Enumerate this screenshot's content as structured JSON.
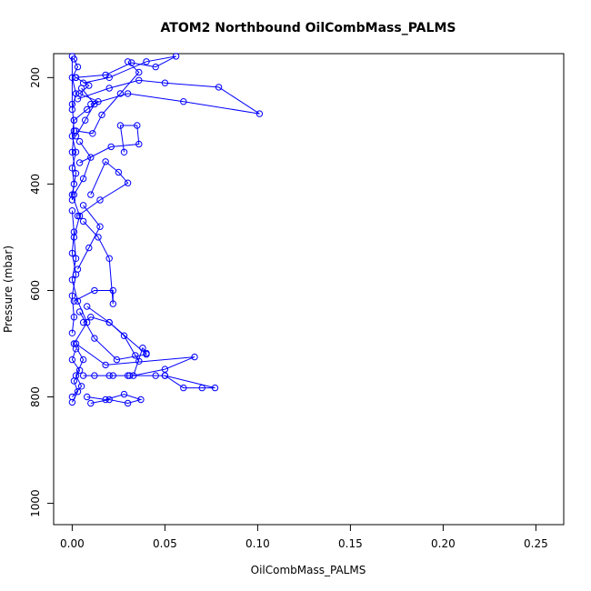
{
  "chart_data": {
    "type": "line",
    "title": "ATOM2 Northbound OilCombMass_PALMS",
    "xlabel": "OilCombMass_PALMS",
    "ylabel": "Pressure (mbar)",
    "xlim": [
      -0.01,
      0.265
    ],
    "ylim": [
      1040,
      155
    ],
    "y_reversed": true,
    "x_ticks": [
      0,
      0.05,
      0.1,
      0.15,
      0.2,
      0.25
    ],
    "x_tick_labels": [
      "0.00",
      "0.05",
      "0.10",
      "0.15",
      "0.20",
      "0.25"
    ],
    "y_ticks": [
      200,
      400,
      600,
      800,
      1000
    ],
    "y_tick_labels": [
      "200",
      "400",
      "600",
      "800",
      "1000"
    ],
    "grid": false,
    "legend": "none",
    "marker": "open-circle",
    "color": "#0000ff",
    "series": [
      {
        "x": [
          0,
          0.005,
          0.002,
          0.006,
          0.001,
          0.008,
          0.003,
          0.0,
          0.002,
          0.001,
          0.004,
          0.0,
          0.002,
          0.0,
          0.001,
          0.0,
          0.0
        ],
        "y": [
          800,
          780,
          760,
          730,
          700,
          660,
          620,
          580,
          540,
          500,
          460,
          420,
          380,
          340,
          300,
          250,
          160
        ]
      },
      {
        "x": [
          0.01,
          0.02,
          0.03,
          0.037,
          0.028,
          0.018,
          0.008
        ],
        "y": [
          812,
          805,
          812,
          805,
          795,
          805,
          800
        ]
      },
      {
        "x": [
          0.012,
          0.022,
          0.031,
          0.05,
          0.06,
          0.07,
          0.077,
          0.05,
          0.045,
          0.03,
          0.02,
          0.006
        ],
        "y": [
          760,
          760,
          760,
          760,
          783,
          783,
          783,
          760,
          760,
          760,
          760,
          760
        ]
      },
      {
        "x": [
          0.002,
          0.018,
          0.066,
          0.05,
          0.033,
          0.038,
          0.04
        ],
        "y": [
          700,
          740,
          725,
          748,
          760,
          708,
          718
        ]
      },
      {
        "x": [
          0.006,
          0.01,
          0.02,
          0.028,
          0.034,
          0.036
        ],
        "y": [
          660,
          650,
          660,
          685,
          722,
          733
        ]
      },
      {
        "x": [
          0.001,
          0.012,
          0.022,
          0.022,
          0.02,
          0.014,
          0.006
        ],
        "y": [
          620,
          600,
          600,
          625,
          540,
          500,
          470
        ]
      },
      {
        "x": [
          0.003,
          0.015,
          0.03,
          0.025,
          0.018,
          0.01
        ],
        "y": [
          460,
          430,
          398,
          378,
          358,
          420
        ]
      },
      {
        "x": [
          0.004,
          0.021,
          0.036,
          0.035,
          0.026,
          0.028
        ],
        "y": [
          360,
          330,
          325,
          290,
          290,
          340
        ]
      },
      {
        "x": [
          0.002,
          0.011,
          0.016,
          0.026,
          0.036,
          0.03
        ],
        "y": [
          300,
          305,
          270,
          230,
          190,
          170
        ]
      },
      {
        "x": [
          0.003,
          0.02,
          0.036,
          0.05,
          0.079,
          0.101,
          0.06,
          0.03,
          0.01
        ],
        "y": [
          240,
          220,
          205,
          210,
          218,
          268,
          245,
          230,
          250
        ]
      },
      {
        "x": [
          0.002,
          0.018,
          0.032,
          0.045,
          0.056,
          0.04,
          0.02,
          0.006
        ],
        "y": [
          200,
          195,
          172,
          180,
          160,
          170,
          200,
          210
        ]
      },
      {
        "x": [
          0.001,
          0.008,
          0.014,
          0.004,
          0.009,
          0.002
        ],
        "y": [
          280,
          260,
          245,
          230,
          215,
          200
        ]
      },
      {
        "x": [
          0.0,
          0.003,
          0.001,
          0.004,
          0.0,
          0.002
        ],
        "y": [
          810,
          790,
          770,
          750,
          730,
          710
        ]
      },
      {
        "x": [
          0.0,
          0.001,
          0.0,
          0.002,
          0.0,
          0.001,
          0.0
        ],
        "y": [
          680,
          650,
          610,
          570,
          530,
          490,
          450
        ]
      },
      {
        "x": [
          0.0,
          0.001,
          0.0,
          0.002,
          0.0,
          0.001
        ],
        "y": [
          430,
          400,
          370,
          340,
          310,
          280
        ]
      },
      {
        "x": [
          0.0,
          0.002,
          0.0,
          0.003,
          0.001
        ],
        "y": [
          260,
          230,
          200,
          180,
          165
        ]
      },
      {
        "x": [
          0.004,
          0.012,
          0.024,
          0.04,
          0.02,
          0.008
        ],
        "y": [
          640,
          690,
          730,
          720,
          660,
          630
        ]
      },
      {
        "x": [
          0.003,
          0.009,
          0.015,
          0.006
        ],
        "y": [
          560,
          520,
          480,
          440
        ]
      },
      {
        "x": [
          0.001,
          0.006,
          0.01,
          0.004
        ],
        "y": [
          420,
          390,
          350,
          320
        ]
      },
      {
        "x": [
          0.002,
          0.007,
          0.012,
          0.005
        ],
        "y": [
          310,
          280,
          250,
          220
        ]
      }
    ]
  }
}
